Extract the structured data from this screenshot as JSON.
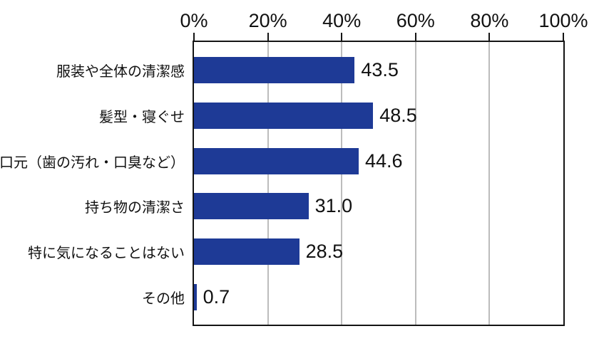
{
  "chart_data": {
    "type": "bar",
    "orientation": "horizontal",
    "title": "",
    "xlabel": "",
    "ylabel": "",
    "grid": true,
    "legend": false,
    "categories": [
      "服装や全体の清潔感",
      "髪型・寝ぐせ",
      "口元（歯の汚れ・口臭など）",
      "持ち物の清潔さ",
      "特に気になることはない",
      "その他"
    ],
    "values": [
      43.5,
      48.5,
      44.6,
      31.0,
      28.5,
      0.7
    ],
    "rows": [
      {
        "label": "服装や全体の清潔感",
        "value": 43.5,
        "value_label": "43.5"
      },
      {
        "label": "髪型・寝ぐせ",
        "value": 48.5,
        "value_label": "48.5"
      },
      {
        "label": "口元（歯の汚れ・口臭など）",
        "value": 44.6,
        "value_label": "44.6"
      },
      {
        "label": "持ち物の清潔さ",
        "value": 31.0,
        "value_label": "31.0"
      },
      {
        "label": "特に気になることはない",
        "value": 28.5,
        "value_label": "28.5"
      },
      {
        "label": "その他",
        "value": 0.7,
        "value_label": "0.7"
      }
    ],
    "x_axis": {
      "position": "top",
      "min": 0,
      "max": 100,
      "unit": "%",
      "ticks": [
        "0%",
        "20%",
        "40%",
        "60%",
        "80%",
        "100%"
      ],
      "tick_positions": [
        0,
        20,
        40,
        60,
        80,
        100
      ],
      "gridlines": [
        20,
        40,
        60,
        80
      ]
    },
    "colors": {
      "bar": "#1e3a96",
      "gridline": "#787878",
      "axis": "#141414",
      "text": "#111111",
      "background": "#ffffff"
    }
  }
}
